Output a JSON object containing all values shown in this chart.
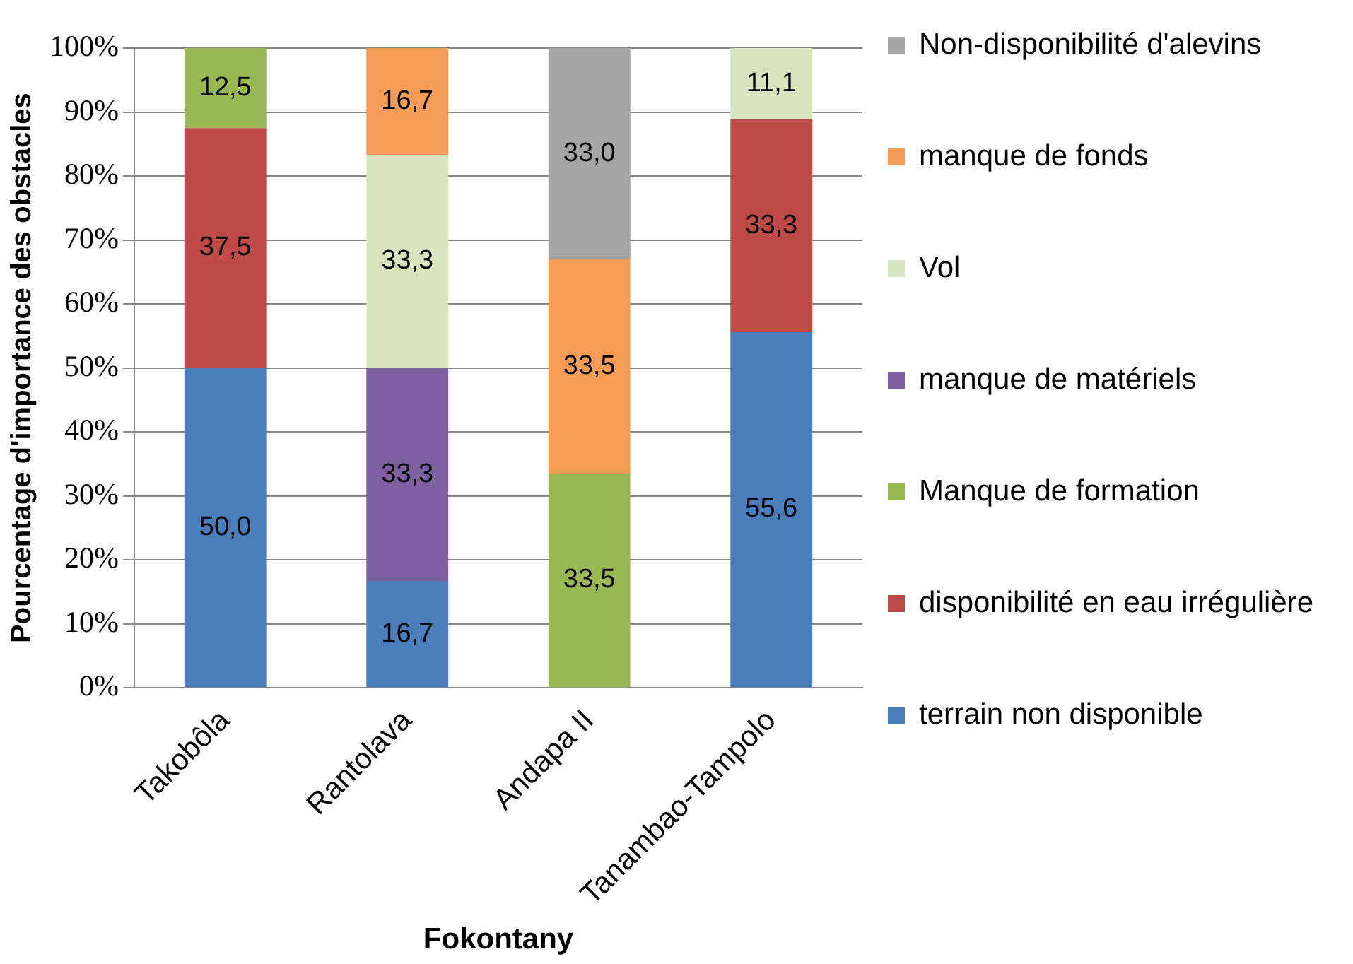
{
  "chart_data": {
    "type": "bar",
    "stacked": true,
    "xlabel": "Fokontany",
    "ylabel": "Pourcentage d'importance des obstacles",
    "categories": [
      "Takobôla",
      "Rantolava",
      "Andapa II",
      "Tanambao-Tampolo"
    ],
    "ylim": [
      0,
      100
    ],
    "yticks": [
      {
        "value": 0,
        "label": "0%"
      },
      {
        "value": 10,
        "label": "10%"
      },
      {
        "value": 20,
        "label": "20%"
      },
      {
        "value": 30,
        "label": "30%"
      },
      {
        "value": 40,
        "label": "40%"
      },
      {
        "value": 50,
        "label": "50%"
      },
      {
        "value": 60,
        "label": "60%"
      },
      {
        "value": 70,
        "label": "70%"
      },
      {
        "value": 80,
        "label": "80%"
      },
      {
        "value": 90,
        "label": "90%"
      },
      {
        "value": 100,
        "label": "100%"
      }
    ],
    "grid": "y",
    "legend": "right",
    "series": [
      {
        "name": "terrain non disponible",
        "color": "#4a7ebb",
        "values": [
          50.0,
          16.7,
          null,
          55.6
        ],
        "value_labels": [
          "50,0",
          "16,7",
          null,
          "55,6"
        ]
      },
      {
        "name": "disponibilité en eau irrégulière",
        "color": "#be4b48",
        "values": [
          37.5,
          null,
          null,
          33.3
        ],
        "value_labels": [
          "37,5",
          null,
          null,
          "33,3"
        ]
      },
      {
        "name": "Manque de formation",
        "color": "#98b954",
        "values": [
          12.5,
          null,
          33.5,
          null
        ],
        "value_labels": [
          "12,5",
          null,
          "33,5",
          null
        ]
      },
      {
        "name": "manque de matériels",
        "color": "#7d60a0",
        "values": [
          null,
          33.3,
          null,
          null
        ],
        "value_labels": [
          null,
          "33,3",
          null,
          null
        ]
      },
      {
        "name": "Vol",
        "color": "#d7e4bd",
        "values": [
          null,
          33.3,
          null,
          11.1
        ],
        "value_labels": [
          null,
          "33,3",
          null,
          "11,1"
        ]
      },
      {
        "name": "manque de fonds",
        "color": "#f59d56",
        "values": [
          null,
          16.7,
          33.5,
          null
        ],
        "value_labels": [
          null,
          "16,7",
          "33,5",
          null
        ]
      },
      {
        "name": "Non-disponibilité d'alevins",
        "color": "#a5a5a5",
        "values": [
          null,
          null,
          33.0,
          null
        ],
        "value_labels": [
          null,
          null,
          "33,0",
          null
        ]
      }
    ]
  }
}
